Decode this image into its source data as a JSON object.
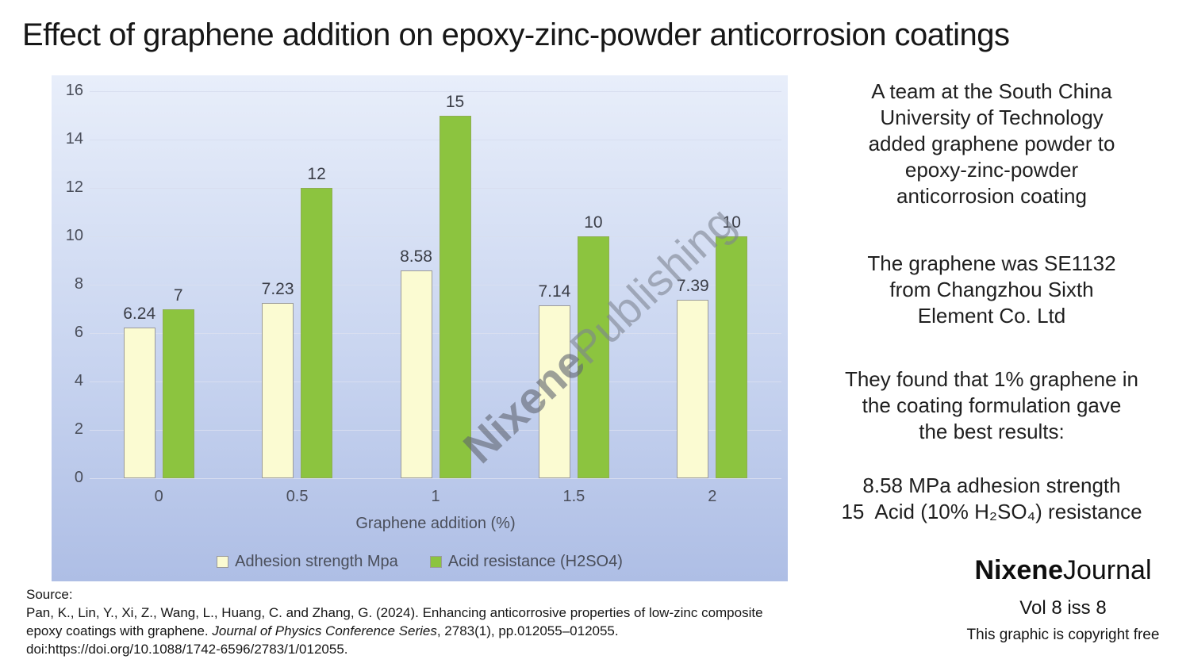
{
  "title": "Effect of graphene addition on epoxy-zinc-powder anticorrosion coatings",
  "chart_data": {
    "type": "bar",
    "categories": [
      "0",
      "0.5",
      "1",
      "1.5",
      "2"
    ],
    "series": [
      {
        "name": "Adhesion strength Mpa",
        "color": "#FBFBD2",
        "border": "#9b9b9b",
        "values": [
          6.24,
          7.23,
          8.58,
          7.14,
          7.39
        ]
      },
      {
        "name": "Acid resistance (H2SO4)",
        "color": "#8CC43F",
        "border": "#8fae52",
        "values": [
          7,
          12,
          15,
          10,
          10
        ]
      }
    ],
    "xlabel": "Graphene addition (%)",
    "ylabel": "",
    "ylim": [
      0,
      16
    ],
    "ytick_step": 2,
    "grid": true,
    "legend_position": "bottom",
    "background_gradient": [
      "#E8EEFA",
      "#AEBEE5"
    ],
    "gridline_color": "#D8DEF0"
  },
  "watermark": {
    "bold": "Nixene",
    "light": "Publishing"
  },
  "side_panel": {
    "p1": "A team at the South China\nUniversity of Technology\nadded graphene powder to\nepoxy-zinc-powder\nanticorrosion coating",
    "p2": "The graphene was SE1132\nfrom Changzhou Sixth\nElement Co. Ltd",
    "p3": "They found that 1% graphene in\nthe coating formulation gave\nthe best results:",
    "result_line1": "8.58 MPa adhesion strength",
    "result_line2": "15  Acid (10% H₂SO₄) resistance"
  },
  "source": {
    "label": "Source:",
    "part1": "Pan, K., Lin, Y., Xi, Z., Wang, L., Huang, C. and Zhang, G. (2024). Enhancing anticorrosive properties of low-zinc composite epoxy coatings with graphene. ",
    "italic": "Journal of Physics Conference Series",
    "part2": ", 2783(1), pp.012055–012055.",
    "doi": "doi:https://doi.org/10.1088/1742-6596/2783/1/012055."
  },
  "brand": {
    "name_bold": "Nixene",
    "name_regular": "Journal",
    "volume": "Vol 8  iss 8",
    "copyright": "This graphic is copyright free"
  }
}
